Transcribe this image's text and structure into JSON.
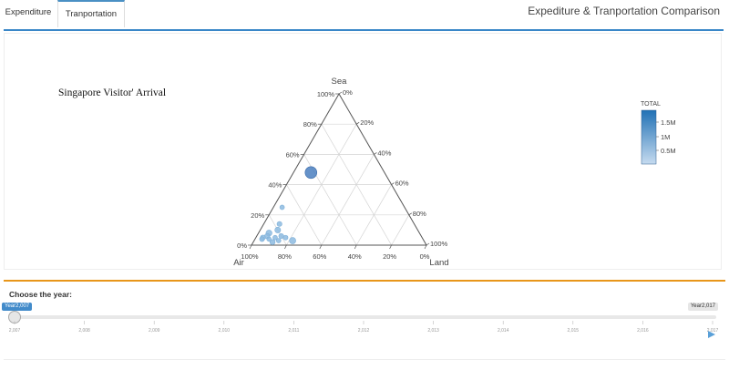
{
  "tabs": [
    {
      "label": "Expenditure"
    },
    {
      "label": "Tranportation"
    }
  ],
  "app_title": "Expediture & Tranportation Comparison",
  "plot": {
    "title": "Singapore Visitor' Arrival",
    "axis_sea": "Sea",
    "axis_air": "Air",
    "axis_land": "Land",
    "ticks_left": [
      "0%",
      "20%",
      "40%",
      "60%",
      "80%",
      "100%"
    ],
    "ticks_right": [
      "0%",
      "20%",
      "40%",
      "60%",
      "80%",
      "100%"
    ],
    "ticks_bottom": [
      "100%",
      "80%",
      "60%",
      "40%",
      "20%",
      "0%"
    ],
    "colorbar_title": "TOTAL",
    "colorbar_ticks": [
      "1.5M",
      "1M",
      "0.5M"
    ],
    "accent_color": "#2171b5",
    "light_color": "#9ecae1"
  },
  "chart_data": {
    "type": "scatter",
    "subtype": "ternary",
    "title": "Singapore Visitor' Arrival",
    "axes": {
      "a": "Sea",
      "b": "Air",
      "c": "Land"
    },
    "points": [
      {
        "sea": 0.48,
        "air": 0.42,
        "land": 0.1,
        "total": 1700000
      },
      {
        "sea": 0.25,
        "air": 0.7,
        "land": 0.05,
        "total": 60000
      },
      {
        "sea": 0.14,
        "air": 0.77,
        "land": 0.09,
        "total": 90000
      },
      {
        "sea": 0.1,
        "air": 0.8,
        "land": 0.1,
        "total": 180000
      },
      {
        "sea": 0.08,
        "air": 0.86,
        "land": 0.06,
        "total": 200000
      },
      {
        "sea": 0.06,
        "air": 0.88,
        "land": 0.06,
        "total": 120000
      },
      {
        "sea": 0.05,
        "air": 0.91,
        "land": 0.04,
        "total": 100000
      },
      {
        "sea": 0.04,
        "air": 0.92,
        "land": 0.04,
        "total": 80000
      },
      {
        "sea": 0.06,
        "air": 0.8,
        "land": 0.14,
        "total": 90000
      },
      {
        "sea": 0.05,
        "air": 0.78,
        "land": 0.17,
        "total": 70000
      },
      {
        "sea": 0.03,
        "air": 0.83,
        "land": 0.14,
        "total": 60000
      },
      {
        "sea": 0.02,
        "air": 0.87,
        "land": 0.11,
        "total": 120000
      },
      {
        "sea": 0.03,
        "air": 0.75,
        "land": 0.22,
        "total": 260000
      },
      {
        "sea": 0.04,
        "air": 0.88,
        "land": 0.08,
        "total": 50000
      },
      {
        "sea": 0.05,
        "air": 0.84,
        "land": 0.11,
        "total": 60000
      }
    ],
    "colorbar": {
      "title": "TOTAL",
      "range": [
        0,
        1800000
      ],
      "ticks": [
        "0.5M",
        "1M",
        "1.5M"
      ]
    }
  },
  "slider": {
    "label": "Choose the year:",
    "min_label": "Year2,007",
    "max_label": "Year2,017",
    "value_fraction": 0,
    "ticks": [
      "2,007",
      "2,008",
      "2,009",
      "2,010",
      "2,011",
      "2,012",
      "2,013",
      "2,014",
      "2,015",
      "2,016",
      "2,017"
    ]
  }
}
